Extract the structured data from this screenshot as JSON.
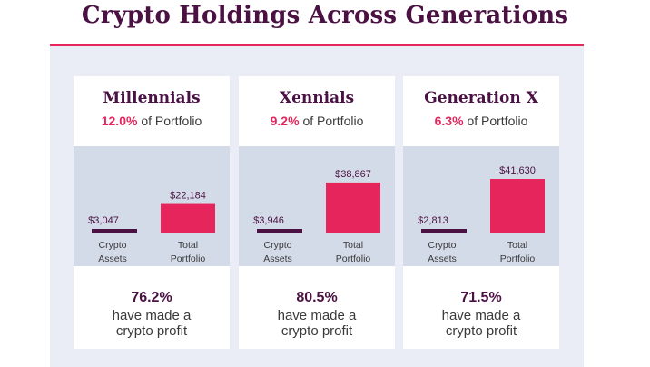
{
  "title": "Crypto Holdings Across Generations",
  "colors": {
    "accent": "#e5255c",
    "dark": "#4a1142",
    "panel": "#eaedf5",
    "chart_bg": "#d4dbe8"
  },
  "cards": [
    {
      "name": "Millennials",
      "share_pct": "12.0%",
      "share_suffix": "of Portfolio",
      "profit_pct": "76.2%",
      "profit_line1": "have made a",
      "profit_line2": "crypto profit"
    },
    {
      "name": "Xennials",
      "share_pct": "9.2%",
      "share_suffix": "of Portfolio",
      "profit_pct": "80.5%",
      "profit_line1": "have made a",
      "profit_line2": "crypto profit"
    },
    {
      "name": "Generation X",
      "share_pct": "6.3%",
      "share_suffix": "of Portfolio",
      "profit_pct": "71.5%",
      "profit_line1": "have made a",
      "profit_line2": "crypto profit"
    }
  ],
  "chart_data": [
    {
      "type": "bar",
      "title": "Millennials",
      "categories": [
        "Crypto Assets",
        "Total Portfolio"
      ],
      "category_lines": [
        [
          "Crypto",
          "Assets"
        ],
        [
          "Total",
          "Portfolio"
        ]
      ],
      "values": [
        3047,
        22184
      ],
      "value_labels": [
        "$3,047",
        "$22,184"
      ],
      "ylim": [
        0,
        41630
      ]
    },
    {
      "type": "bar",
      "title": "Xennials",
      "categories": [
        "Crypto Assets",
        "Total Portfolio"
      ],
      "category_lines": [
        [
          "Crypto",
          "Assets"
        ],
        [
          "Total",
          "Portfolio"
        ]
      ],
      "values": [
        3946,
        38867
      ],
      "value_labels": [
        "$3,946",
        "$38,867"
      ],
      "ylim": [
        0,
        41630
      ]
    },
    {
      "type": "bar",
      "title": "Generation X",
      "categories": [
        "Crypto Assets",
        "Total Portfolio"
      ],
      "category_lines": [
        [
          "Crypto",
          "Assets"
        ],
        [
          "Total",
          "Portfolio"
        ]
      ],
      "values": [
        2813,
        41630
      ],
      "value_labels": [
        "$2,813",
        "$41,630"
      ],
      "ylim": [
        0,
        41630
      ]
    }
  ]
}
